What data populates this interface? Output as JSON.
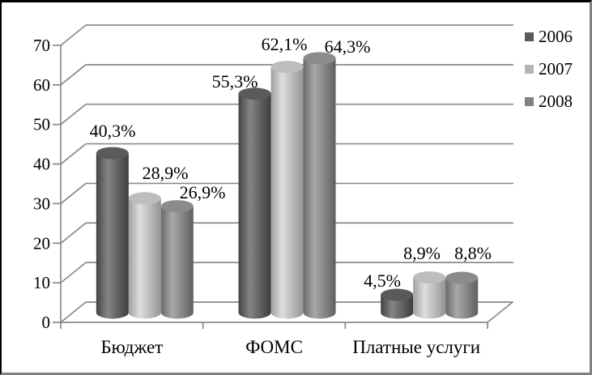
{
  "chart_data": {
    "type": "bar",
    "style": "3d-cylinder",
    "title": "",
    "categories": [
      "Бюджет",
      "ФОМС",
      "Платные услуги"
    ],
    "series": [
      {
        "name": "2006",
        "values": [
          40.3,
          55.3,
          4.5
        ],
        "value_labels": [
          "40,3%",
          "55,3%",
          "4,5%"
        ],
        "legend_color": "#595959",
        "top_color": "#5a5a5a",
        "gradient": [
          "#424242",
          "#858585",
          "#3d3d3d"
        ]
      },
      {
        "name": "2007",
        "values": [
          28.9,
          62.1,
          8.9
        ],
        "value_labels": [
          "28,9%",
          "62,1%",
          "8,9%"
        ],
        "legend_color": "#b5b5b5",
        "top_color": "#bdbdbd",
        "gradient": [
          "#a0a0a0",
          "#dedede",
          "#949494"
        ]
      },
      {
        "name": "2008",
        "values": [
          26.9,
          64.3,
          8.8
        ],
        "value_labels": [
          "26,9%",
          "64,3%",
          "8,8%"
        ],
        "legend_color": "#818181",
        "top_color": "#8b8b8b",
        "gradient": [
          "#6a6a6a",
          "#a8a8a8",
          "#606060"
        ]
      }
    ],
    "y_ticks": [
      0,
      10,
      20,
      30,
      40,
      50,
      60,
      70
    ],
    "ylim": [
      0,
      70
    ],
    "value_suffix": "%",
    "decimal_separator": ",",
    "grid": true,
    "grid_color": "#8a8a8a",
    "text_color": "#000000",
    "background": "#ffffff",
    "legend_position": "top-right"
  }
}
